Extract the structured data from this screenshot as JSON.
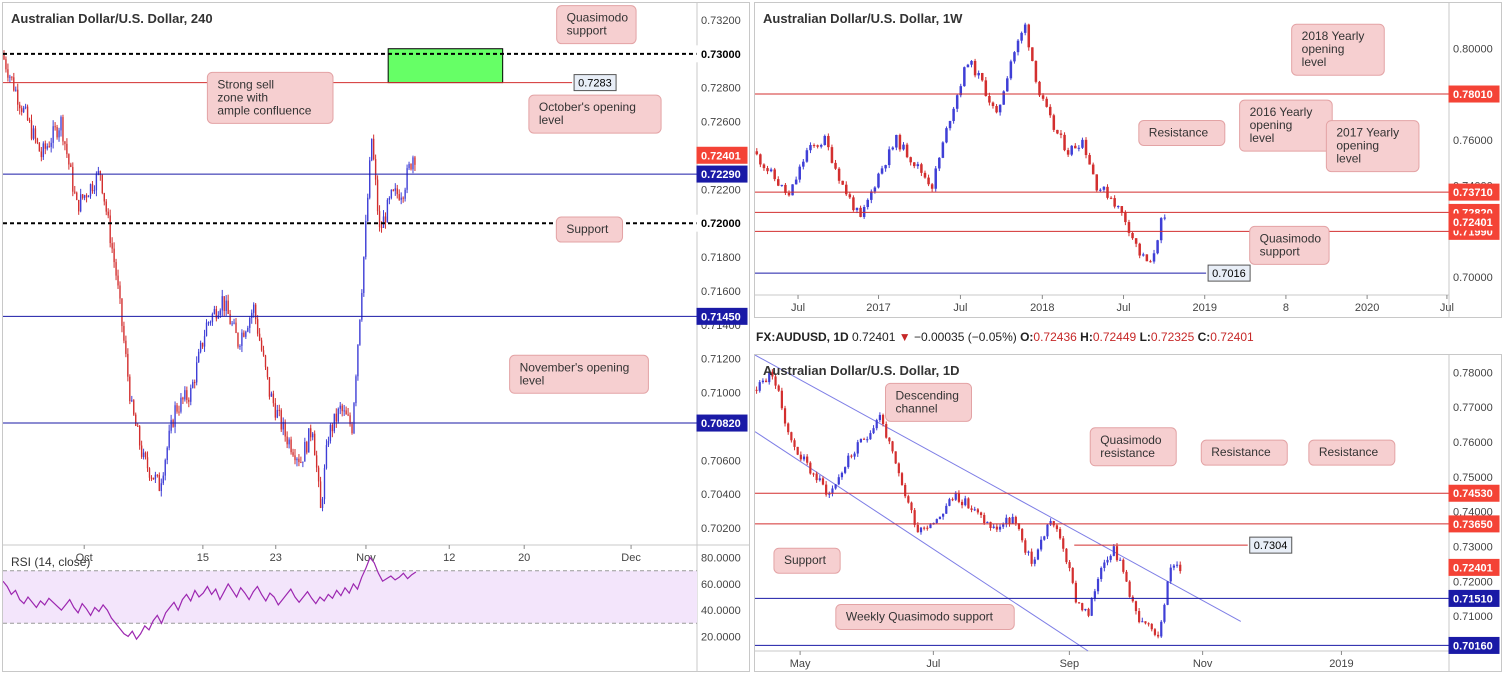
{
  "colors": {
    "bull": "#3f3fd6",
    "bear": "#d32f2f",
    "red_level": "#d32f2f",
    "blue_level": "#1a1aa6",
    "note_fill": "#f6cfd0",
    "note_stroke": "#e3a3a5",
    "zone_fill": "#66ff66",
    "rsi_line": "#9c27b0",
    "rsi_band": "#f3e5fb",
    "price_tag_red": "#f44336",
    "price_tag_blue": "#1a1aa6"
  },
  "header": {
    "ohlc_symbol": "FX:AUDUSD, 1D",
    "ohlc_last": "0.72401",
    "ohlc_arrow": "▼",
    "ohlc_change": "−0.00035 (−0.05%)",
    "ohlc_o_label": "O:",
    "ohlc_o": "0.72436",
    "ohlc_h_label": "H:",
    "ohlc_h": "0.72449",
    "ohlc_l_label": "L:",
    "ohlc_l": "0.72325",
    "ohlc_c_label": "C:",
    "ohlc_c": "0.72401"
  },
  "chart_data": [
    {
      "id": "h4",
      "type": "candlestick",
      "title": "Australian Dollar/U.S. Dollar, 240",
      "ylim": [
        0.701,
        0.733
      ],
      "y_ticks": [
        "0.73200",
        "0.73000",
        "0.72800",
        "0.72600",
        "0.72400",
        "0.72200",
        "0.72000",
        "0.71800",
        "0.71600",
        "0.71400",
        "0.71200",
        "0.71000",
        "0.70800",
        "0.70600",
        "0.70400",
        "0.70200"
      ],
      "x_ticks": [
        "Oct",
        "15",
        "23",
        "Nov",
        "12",
        "20",
        "Dec"
      ],
      "x_tick_pos": [
        0.117,
        0.288,
        0.393,
        0.523,
        0.643,
        0.751,
        0.905
      ],
      "candle_count": 210,
      "candle_end": 0.595,
      "path": [
        [
          0,
          0.73
        ],
        [
          8,
          0.7275
        ],
        [
          20,
          0.724
        ],
        [
          30,
          0.726
        ],
        [
          38,
          0.721
        ],
        [
          50,
          0.723
        ],
        [
          58,
          0.717
        ],
        [
          66,
          0.709
        ],
        [
          72,
          0.706
        ],
        [
          80,
          0.7045
        ],
        [
          88,
          0.709
        ],
        [
          96,
          0.71
        ],
        [
          104,
          0.714
        ],
        [
          112,
          0.7155
        ],
        [
          120,
          0.713
        ],
        [
          128,
          0.715
        ],
        [
          136,
          0.71
        ],
        [
          144,
          0.7075
        ],
        [
          152,
          0.706
        ],
        [
          158,
          0.708
        ],
        [
          162,
          0.703
        ],
        [
          166,
          0.7075
        ],
        [
          172,
          0.709
        ],
        [
          178,
          0.708
        ],
        [
          184,
          0.718
        ],
        [
          188,
          0.725
        ],
        [
          192,
          0.7195
        ],
        [
          198,
          0.7215
        ],
        [
          204,
          0.722
        ],
        [
          209,
          0.724
        ]
      ],
      "seed": 7,
      "levels": [
        {
          "value": 0.73,
          "style": "dotted-black",
          "label": "0.73000",
          "tag": "white"
        },
        {
          "value": 0.7283,
          "style": "red",
          "label": "0.7283",
          "tag": "callout",
          "x_end": 0.82
        },
        {
          "value": 0.7229,
          "style": "blue",
          "label": "0.72290",
          "tag": "blue"
        },
        {
          "value": 0.72,
          "style": "dotted-black",
          "label": "0.72000",
          "tag": "white"
        },
        {
          "value": 0.7145,
          "style": "blue",
          "label": "0.71450",
          "tag": "blue"
        },
        {
          "value": 0.7082,
          "style": "blue",
          "label": "0.70820",
          "tag": "blue"
        }
      ],
      "last_price": {
        "value": 0.72401,
        "label": "0.72401"
      },
      "zone": {
        "x0": 0.555,
        "x1": 0.72,
        "y0": 0.7303,
        "y1": 0.7283
      },
      "notes": [
        {
          "text": [
            "Quasimodo",
            "support"
          ],
          "cx": 0.855,
          "cy": 0.04
        },
        {
          "text": [
            "Strong sell",
            "zone with",
            "ample confluence"
          ],
          "cx": 0.385,
          "cy": 0.175
        },
        {
          "text": [
            "October's opening",
            "level"
          ],
          "cx": 0.853,
          "cy": 0.205
        },
        {
          "text": [
            "Support"
          ],
          "cx": 0.845,
          "cy": 0.418
        },
        {
          "text": [
            "November's opening",
            "level"
          ],
          "cx": 0.83,
          "cy": 0.685
        }
      ],
      "rsi": {
        "label": "RSI (14, close)",
        "ylim": [
          15,
          85
        ],
        "y_ticks": [
          "80.0000",
          "60.0000",
          "40.0000",
          "20.0000"
        ],
        "y_tick_values": [
          80,
          60,
          40,
          20
        ],
        "upper": 70,
        "lower": 30,
        "values": [
          62,
          58,
          52,
          55,
          48,
          45,
          50,
          46,
          42,
          47,
          44,
          49,
          46,
          43,
          40,
          44,
          48,
          42,
          38,
          45,
          41,
          36,
          42,
          39,
          44,
          40,
          34,
          30,
          26,
          22,
          20,
          24,
          18,
          22,
          28,
          25,
          32,
          36,
          30,
          38,
          42,
          46,
          40,
          48,
          52,
          47,
          55,
          50,
          53,
          58,
          52,
          56,
          48,
          54,
          60,
          55,
          50,
          57,
          53,
          48,
          54,
          58,
          52,
          47,
          53,
          50,
          44,
          48,
          52,
          56,
          50,
          46,
          50,
          54,
          49,
          45,
          50,
          47,
          52,
          49,
          55,
          51,
          57,
          53,
          60,
          56,
          65,
          72,
          80,
          76,
          68,
          62,
          64,
          66,
          63,
          65,
          68,
          64,
          67,
          69
        ]
      }
    },
    {
      "id": "weekly",
      "type": "candlestick",
      "title": "Australian Dollar/U.S. Dollar, 1W",
      "ylim": [
        0.692,
        0.82
      ],
      "y_ticks": [
        "0.80000",
        "0.78000",
        "0.76000",
        "0.74000",
        "0.72000",
        "0.70000"
      ],
      "y_tick_values": [
        0.8,
        0.78,
        0.76,
        0.74,
        0.72,
        0.7
      ],
      "x_ticks": [
        "Jul",
        "2017",
        "Jul",
        "2018",
        "Jul",
        "2019",
        "8",
        "2020",
        "Jul"
      ],
      "x_tick_pos": [
        0.062,
        0.178,
        0.296,
        0.414,
        0.531,
        0.648,
        0.765,
        0.882,
        0.997
      ],
      "candle_count": 115,
      "candle_end": 0.593,
      "path": [
        [
          0,
          0.755
        ],
        [
          5,
          0.745
        ],
        [
          10,
          0.735
        ],
        [
          15,
          0.755
        ],
        [
          20,
          0.76
        ],
        [
          25,
          0.74
        ],
        [
          30,
          0.725
        ],
        [
          35,
          0.745
        ],
        [
          40,
          0.76
        ],
        [
          45,
          0.75
        ],
        [
          50,
          0.74
        ],
        [
          55,
          0.77
        ],
        [
          60,
          0.795
        ],
        [
          64,
          0.785
        ],
        [
          68,
          0.77
        ],
        [
          72,
          0.795
        ],
        [
          76,
          0.81
        ],
        [
          80,
          0.78
        ],
        [
          84,
          0.765
        ],
        [
          88,
          0.755
        ],
        [
          92,
          0.76
        ],
        [
          96,
          0.74
        ],
        [
          100,
          0.735
        ],
        [
          104,
          0.725
        ],
        [
          108,
          0.71
        ],
        [
          111,
          0.705
        ],
        [
          114,
          0.724
        ]
      ],
      "seed": 11,
      "levels": [
        {
          "value": 0.7801,
          "style": "red",
          "label": "0.78010",
          "tag": "red"
        },
        {
          "value": 0.7371,
          "style": "red",
          "label": "0.73710",
          "tag": "red"
        },
        {
          "value": 0.7282,
          "style": "red",
          "label": "0.72820",
          "tag": "red"
        },
        {
          "value": 0.7199,
          "style": "red",
          "label": "0.71990",
          "tag": "red"
        },
        {
          "value": 0.7016,
          "style": "blue",
          "label": "0.7016",
          "tag": "callout",
          "x_end": 0.65
        }
      ],
      "last_price": {
        "value": 0.72401,
        "label": "0.72401"
      },
      "notes": [
        {
          "text": [
            "2018 Yearly",
            "opening",
            "level"
          ],
          "cx": 0.84,
          "cy": 0.16
        },
        {
          "text": [
            "Resistance"
          ],
          "cx": 0.615,
          "cy": 0.445
        },
        {
          "text": [
            "2016 Yearly",
            "opening",
            "level"
          ],
          "cx": 0.765,
          "cy": 0.42
        },
        {
          "text": [
            "2017 Yearly",
            "opening",
            "level"
          ],
          "cx": 0.89,
          "cy": 0.49
        },
        {
          "text": [
            "Quasimodo",
            "support"
          ],
          "cx": 0.77,
          "cy": 0.83
        }
      ]
    },
    {
      "id": "daily",
      "type": "candlestick",
      "title": "Australian Dollar/U.S. Dollar, 1D",
      "ylim": [
        0.7,
        0.785
      ],
      "y_ticks": [
        "0.78000",
        "0.77000",
        "0.76000",
        "0.75000",
        "0.74000",
        "0.73000",
        "0.72000",
        "0.71000"
      ],
      "y_tick_values": [
        0.78,
        0.77,
        0.76,
        0.75,
        0.74,
        0.73,
        0.72,
        0.71
      ],
      "x_ticks": [
        "May",
        "Jul",
        "Sep",
        "Nov",
        "2019"
      ],
      "x_tick_pos": [
        0.065,
        0.257,
        0.453,
        0.645,
        0.845
      ],
      "candle_count": 135,
      "candle_end": 0.615,
      "path": [
        [
          0,
          0.775
        ],
        [
          6,
          0.78
        ],
        [
          12,
          0.76
        ],
        [
          18,
          0.752
        ],
        [
          24,
          0.745
        ],
        [
          30,
          0.755
        ],
        [
          36,
          0.762
        ],
        [
          40,
          0.768
        ],
        [
          46,
          0.75
        ],
        [
          52,
          0.735
        ],
        [
          58,
          0.738
        ],
        [
          64,
          0.745
        ],
        [
          70,
          0.74
        ],
        [
          76,
          0.735
        ],
        [
          82,
          0.738
        ],
        [
          88,
          0.725
        ],
        [
          94,
          0.738
        ],
        [
          98,
          0.73
        ],
        [
          102,
          0.715
        ],
        [
          106,
          0.71
        ],
        [
          110,
          0.725
        ],
        [
          114,
          0.73
        ],
        [
          118,
          0.72
        ],
        [
          122,
          0.708
        ],
        [
          128,
          0.705
        ],
        [
          132,
          0.724
        ],
        [
          134,
          0.724
        ]
      ],
      "seed": 23,
      "levels": [
        {
          "value": 0.7453,
          "style": "red",
          "label": "0.74530",
          "tag": "red"
        },
        {
          "value": 0.7365,
          "style": "red",
          "label": "0.73650",
          "tag": "red"
        },
        {
          "value": 0.7304,
          "style": "red",
          "label": "0.7304",
          "tag": "callout",
          "x0": 0.46,
          "x_end": 0.71
        },
        {
          "value": 0.7151,
          "style": "blue",
          "label": "0.71510",
          "tag": "blue"
        },
        {
          "value": 0.7016,
          "style": "blue",
          "label": "0.70160",
          "tag": "blue"
        }
      ],
      "last_price": {
        "value": 0.72401,
        "label": "0.72401"
      },
      "channel": [
        {
          "x0": 0.0,
          "y0": 0.785,
          "x1": 0.7,
          "y1": 0.7085
        },
        {
          "x0": 0.0,
          "y0": 0.763,
          "x1": 0.48,
          "y1": 0.7
        }
      ],
      "notes": [
        {
          "text": [
            "Descending",
            "channel"
          ],
          "cx": 0.25,
          "cy": 0.16
        },
        {
          "text": [
            "Quasimodo",
            "resistance"
          ],
          "cx": 0.545,
          "cy": 0.31
        },
        {
          "text": [
            "Resistance"
          ],
          "cx": 0.705,
          "cy": 0.33
        },
        {
          "text": [
            "Resistance"
          ],
          "cx": 0.86,
          "cy": 0.33
        },
        {
          "text": [
            "Support"
          ],
          "cx": 0.075,
          "cy": 0.695
        },
        {
          "text": [
            "Weekly Quasimodo support"
          ],
          "cx": 0.245,
          "cy": 0.885
        }
      ]
    }
  ]
}
